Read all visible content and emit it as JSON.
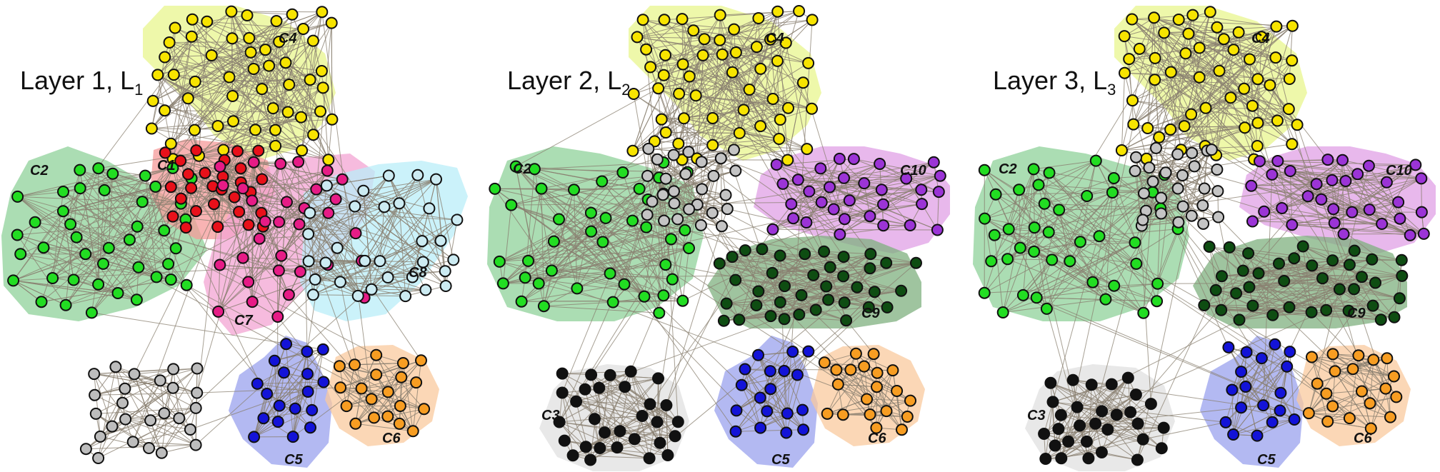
{
  "figure": {
    "panels": [
      {
        "title_main": "Layer 1, L",
        "title_sub": "1",
        "communities": [
          {
            "id": "C4",
            "label": "C4",
            "hull": "#e8f58e",
            "node": "#f7e400"
          },
          {
            "id": "C2",
            "label": "C2",
            "hull": "#8fd19a",
            "node": "#22dd22"
          },
          {
            "id": "C1",
            "label": "C1",
            "hull": "#f59a9a",
            "node": "#e8101a"
          },
          {
            "id": "C7",
            "label": "C7",
            "hull": "#f3a4d3",
            "node": "#e61c86"
          },
          {
            "id": "C8",
            "label": "C8",
            "hull": "#b9eef8",
            "node": "#ccebf2"
          },
          {
            "id": "C5",
            "label": "C5",
            "hull": "#9aa1ee",
            "node": "#1313d8"
          },
          {
            "id": "C6",
            "label": "C6",
            "hull": "#f9c99d",
            "node": "#f79d22"
          },
          {
            "id": "C3",
            "label": "",
            "hull": "none",
            "node": "#bdbdbd"
          }
        ]
      },
      {
        "title_main": "Layer 2, L",
        "title_sub": "2",
        "communities": [
          {
            "id": "C4",
            "label": "C4",
            "hull": "#e8f58e",
            "node": "#f7e400"
          },
          {
            "id": "C2",
            "label": "C2",
            "hull": "#8fd19a",
            "node": "#22dd22"
          },
          {
            "id": "G",
            "label": "",
            "hull": "none",
            "node": "#c4c4c4"
          },
          {
            "id": "C10",
            "label": "C10",
            "hull": "#e0a0e6",
            "node": "#9b34d6"
          },
          {
            "id": "C9",
            "label": "C9",
            "hull": "#7fb07f",
            "node": "#0e4d12"
          },
          {
            "id": "C3",
            "label": "C3",
            "hull": "#e0e0e0",
            "node": "#111111"
          },
          {
            "id": "C5",
            "label": "C5",
            "hull": "#9aa1ee",
            "node": "#1313d8"
          },
          {
            "id": "C6",
            "label": "C6",
            "hull": "#f9c99d",
            "node": "#f79d22"
          }
        ]
      },
      {
        "title_main": "Layer 3, L",
        "title_sub": "3",
        "communities": [
          {
            "id": "C4",
            "label": "C4",
            "hull": "#e8f58e",
            "node": "#f7e400"
          },
          {
            "id": "C2",
            "label": "C2",
            "hull": "#8fd19a",
            "node": "#22dd22"
          },
          {
            "id": "G",
            "label": "",
            "hull": "none",
            "node": "#c4c4c4"
          },
          {
            "id": "C10",
            "label": "C10",
            "hull": "#e0a0e6",
            "node": "#9b34d6"
          },
          {
            "id": "C9",
            "label": "C9",
            "hull": "#7fb07f",
            "node": "#0e4d12"
          },
          {
            "id": "C3",
            "label": "C3",
            "hull": "#e0e0e0",
            "node": "#111111"
          },
          {
            "id": "C5",
            "label": "C5",
            "hull": "#9aa1ee",
            "node": "#1313d8"
          },
          {
            "id": "C6",
            "label": "C6",
            "hull": "#f9c99d",
            "node": "#f79d22"
          }
        ]
      }
    ],
    "edge_color": "#8a8070",
    "node_outline": "#111111"
  }
}
